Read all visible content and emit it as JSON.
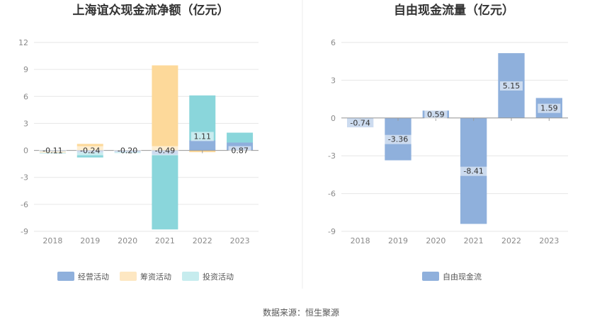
{
  "source_text": "数据来源：恒生聚源",
  "chart_data": [
    {
      "type": "bar",
      "title": "上海谊众现金流净额（亿元）",
      "categories": [
        "2018",
        "2019",
        "2020",
        "2021",
        "2022",
        "2023"
      ],
      "ylim": [
        -9,
        12
      ],
      "yticks": [
        12,
        9,
        6,
        3,
        0,
        -3,
        -6,
        -9
      ],
      "grid": true,
      "legend_position": "bottom",
      "series": [
        {
          "name": "经营活动",
          "color": "#8fb0dc",
          "values": [
            -0.11,
            -0.24,
            -0.2,
            -0.49,
            1.11,
            0.87
          ]
        },
        {
          "name": "筹资活动",
          "color": "#fdd99a",
          "values": [
            -0.15,
            0.72,
            0.0,
            9.45,
            -0.2,
            0.0
          ]
        },
        {
          "name": "投资活动",
          "color": "#8ad6db",
          "values": [
            -0.1,
            -0.55,
            -0.1,
            -8.3,
            5.0,
            1.1
          ]
        }
      ],
      "labels": [
        "-0.11",
        "-0.24",
        "-0.20",
        "-0.49",
        "1.11",
        "0.87"
      ]
    },
    {
      "type": "bar",
      "title": "自由现金流量（亿元）",
      "categories": [
        "2018",
        "2019",
        "2020",
        "2021",
        "2022",
        "2023"
      ],
      "ylim": [
        -9,
        6
      ],
      "yticks": [
        6,
        3,
        0,
        -3,
        -6,
        -9
      ],
      "grid": true,
      "legend_position": "bottom",
      "series": [
        {
          "name": "自由现金流",
          "color": "#8fb0dc",
          "values": [
            -0.74,
            -3.36,
            0.59,
            -8.41,
            5.15,
            1.59
          ]
        }
      ],
      "labels": [
        "-0.74",
        "-3.36",
        "0.59",
        "-8.41",
        "5.15",
        "1.59"
      ]
    }
  ]
}
